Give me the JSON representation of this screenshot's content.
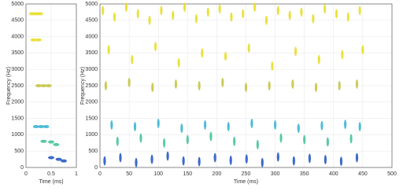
{
  "chart_data": [
    {
      "type": "scatter",
      "x_label": "Time (ms)",
      "y_label": "Frequency (Hz)",
      "xlim": [
        0,
        1
      ],
      "xticks": [
        0,
        0.5,
        1
      ],
      "ylim": [
        0,
        5000
      ],
      "yticks": [
        0,
        500,
        1000,
        1500,
        2000,
        2500,
        3000,
        3500,
        4000,
        4500,
        5000
      ],
      "grid": true,
      "series": [
        {
          "color": "#e6dc1e",
          "x": [
            0.12,
            0.2,
            0.28,
            0.15,
            0.25
          ],
          "values": [
            4700,
            4700,
            4700,
            3900,
            3900
          ]
        },
        {
          "color": "#c2c23c",
          "x": [
            0.25,
            0.35,
            0.45
          ],
          "values": [
            2500,
            2500,
            2500
          ]
        },
        {
          "color": "#30b0d0",
          "x": [
            0.2,
            0.3,
            0.4
          ],
          "values": [
            1250,
            1250,
            1250
          ]
        },
        {
          "color": "#3cbf98",
          "x": [
            0.35,
            0.5,
            0.6
          ],
          "values": [
            800,
            780,
            700
          ]
        },
        {
          "color": "#1a50c0",
          "x": [
            0.5,
            0.65,
            0.75
          ],
          "values": [
            300,
            250,
            200
          ]
        }
      ]
    },
    {
      "type": "scatter",
      "x_label": "Time (ms)",
      "y_label": "Frequency (Hz)",
      "xlim": [
        0,
        500
      ],
      "xticks": [
        0,
        50,
        100,
        150,
        200,
        250,
        300,
        350,
        400,
        450,
        500
      ],
      "ylim": [
        0,
        5000
      ],
      "yticks": [
        0,
        500,
        1000,
        1500,
        2000,
        2500,
        3000,
        3500,
        4000,
        4500,
        5000
      ],
      "grid": true,
      "series": [
        {
          "color": "#e6dc1e",
          "x": [
            5,
            25,
            45,
            65,
            85,
            105,
            125,
            145,
            165,
            185,
            205,
            225,
            245,
            265,
            285,
            305,
            325,
            345,
            365,
            385,
            405,
            425,
            445,
            15,
            55,
            95,
            135,
            175,
            215,
            255,
            295,
            335,
            375,
            415,
            450
          ],
          "values": [
            4800,
            4600,
            4900,
            4700,
            4500,
            4800,
            4650,
            4900,
            4550,
            4750,
            4850,
            4600,
            4700,
            4900,
            4500,
            4800,
            4650,
            4750,
            4550,
            4850,
            4700,
            4600,
            4800,
            3600,
            3300,
            3700,
            3200,
            3500,
            3400,
            3650,
            3100,
            3550,
            3300,
            3450,
            3600
          ]
        },
        {
          "color": "#c2c23c",
          "x": [
            10,
            50,
            90,
            130,
            170,
            210,
            250,
            290,
            330,
            370,
            410,
            440
          ],
          "values": [
            2500,
            2600,
            2450,
            2550,
            2500,
            2600,
            2450,
            2500,
            2550,
            2450,
            2500,
            2550
          ]
        },
        {
          "color": "#30b0d0",
          "x": [
            20,
            60,
            100,
            140,
            180,
            220,
            260,
            300,
            340,
            380,
            420,
            445
          ],
          "values": [
            1300,
            1250,
            1350,
            1200,
            1300,
            1250,
            1350,
            1300,
            1200,
            1280,
            1320,
            1250
          ]
        },
        {
          "color": "#3cbf98",
          "x": [
            30,
            70,
            110,
            150,
            190,
            230,
            270,
            310,
            350,
            390,
            430
          ],
          "values": [
            800,
            900,
            750,
            850,
            950,
            800,
            700,
            900,
            850,
            780,
            880
          ]
        },
        {
          "color": "#1a50c0",
          "x": [
            8,
            35,
            62,
            89,
            116,
            143,
            170,
            197,
            224,
            251,
            278,
            305,
            332,
            359,
            386,
            413,
            440
          ],
          "values": [
            200,
            300,
            150,
            250,
            350,
            200,
            180,
            300,
            220,
            260,
            150,
            320,
            200,
            280,
            240,
            190,
            300
          ]
        }
      ]
    }
  ]
}
